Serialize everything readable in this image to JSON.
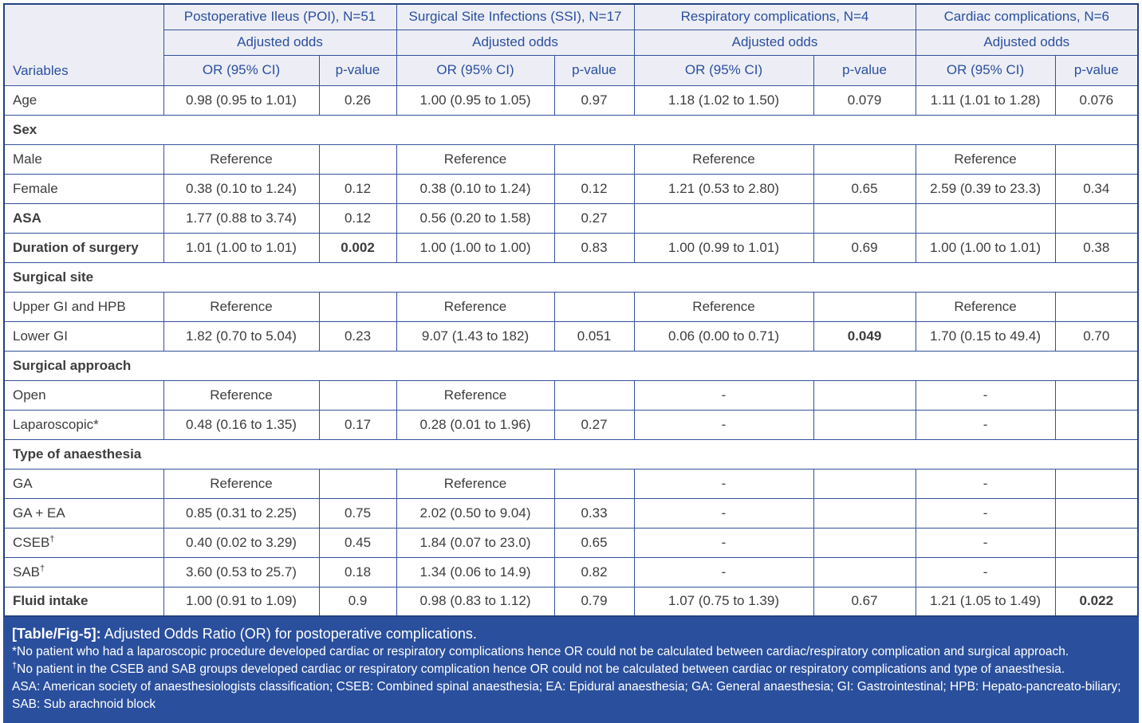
{
  "table": {
    "groups": [
      {
        "label": "Postoperative Ileus (POI), N=51",
        "subheader": "Adjusted odds"
      },
      {
        "label": "Surgical Site Infections (SSI), N=17",
        "subheader": "Adjusted odds"
      },
      {
        "label": "Respiratory complications, N=4",
        "subheader": "Adjusted odds"
      },
      {
        "label": "Cardiac complications, N=6",
        "subheader": "Adjusted odds"
      }
    ],
    "col_headers": {
      "variables": "Variables",
      "or": "OR (95% CI)",
      "p": "p-value"
    },
    "rows": [
      {
        "kind": "data",
        "label": "Age",
        "cells": [
          "0.98 (0.95 to 1.01)",
          "0.26",
          "1.00 (0.95 to 1.05)",
          "0.97",
          "1.18 (1.02 to 1.50)",
          "0.079",
          "1.11 (1.01 to 1.28)",
          "0.076"
        ]
      },
      {
        "kind": "section",
        "label": "Sex"
      },
      {
        "kind": "data",
        "label": "Male",
        "cells": [
          "Reference",
          "",
          "Reference",
          "",
          "Reference",
          "",
          "Reference",
          ""
        ]
      },
      {
        "kind": "data",
        "label": "Female",
        "cells": [
          "0.38 (0.10 to 1.24)",
          "0.12",
          "0.38 (0.10 to 1.24)",
          "0.12",
          "1.21 (0.53 to 2.80)",
          "0.65",
          "2.59 (0.39 to 23.3)",
          "0.34"
        ]
      },
      {
        "kind": "data",
        "label": "ASA",
        "labelBold": true,
        "cells": [
          "1.77 (0.88 to 3.74)",
          "0.12",
          "0.56 (0.20 to 1.58)",
          "0.27",
          "",
          "",
          "",
          ""
        ]
      },
      {
        "kind": "data",
        "label": "Duration of surgery",
        "labelBold": true,
        "boldCells": [
          1
        ],
        "cells": [
          "1.01 (1.00 to 1.01)",
          "0.002",
          "1.00 (1.00 to 1.00)",
          "0.83",
          "1.00 (0.99 to 1.01)",
          "0.69",
          "1.00 (1.00 to 1.01)",
          "0.38"
        ]
      },
      {
        "kind": "section",
        "label": "Surgical site"
      },
      {
        "kind": "data",
        "label": "Upper GI and HPB",
        "cells": [
          "Reference",
          "",
          "Reference",
          "",
          "Reference",
          "",
          "Reference",
          ""
        ]
      },
      {
        "kind": "data",
        "label": "Lower GI",
        "boldCells": [
          5
        ],
        "cells": [
          "1.82 (0.70 to 5.04)",
          "0.23",
          "9.07 (1.43 to 182)",
          "0.051",
          "0.06 (0.00 to 0.71)",
          "0.049",
          "1.70 (0.15 to 49.4)",
          "0.70"
        ]
      },
      {
        "kind": "section",
        "label": "Surgical approach"
      },
      {
        "kind": "data",
        "label": "Open",
        "cells": [
          "Reference",
          "",
          "Reference",
          "",
          "-",
          "",
          "-",
          ""
        ]
      },
      {
        "kind": "data",
        "label": "Laparoscopic*",
        "cells": [
          "0.48 (0.16 to 1.35)",
          "0.17",
          "0.28 (0.01 to 1.96)",
          "0.27",
          "-",
          "",
          "-",
          ""
        ]
      },
      {
        "kind": "section",
        "label": "Type of anaesthesia"
      },
      {
        "kind": "data",
        "label": "GA",
        "cells": [
          "Reference",
          "",
          "Reference",
          "",
          "-",
          "",
          "-",
          ""
        ]
      },
      {
        "kind": "data",
        "label": "GA + EA",
        "cells": [
          "0.85 (0.31 to 2.25)",
          "0.75",
          "2.02 (0.50 to 9.04)",
          "0.33",
          "-",
          "",
          "-",
          ""
        ]
      },
      {
        "kind": "data",
        "label": "CSEB",
        "sup": "†",
        "cells": [
          "0.40 (0.02 to 3.29)",
          "0.45",
          "1.84 (0.07 to 23.0)",
          "0.65",
          "-",
          "",
          "-",
          ""
        ]
      },
      {
        "kind": "data",
        "label": "SAB",
        "sup": "†",
        "cells": [
          "3.60 (0.53 to 25.7)",
          "0.18",
          "1.34 (0.06 to 14.9)",
          "0.82",
          "-",
          "",
          "-",
          ""
        ]
      },
      {
        "kind": "data",
        "label": "Fluid intake",
        "labelBold": true,
        "boldCells": [
          7
        ],
        "cells": [
          "1.00 (0.91 to 1.09)",
          "0.9",
          "0.98 (0.83 to 1.12)",
          "0.79",
          "1.07 (0.75 to 1.39)",
          "0.67",
          "1.21 (1.05 to 1.49)",
          "0.022"
        ]
      }
    ]
  },
  "footer": {
    "caption_tag": "[Table/Fig-5]:",
    "caption": " Adjusted Odds Ratio (OR) for postoperative complications.",
    "notes": [
      {
        "sup": "",
        "text": "*No patient who had a laparoscopic procedure developed cardiac or respiratory complications hence OR could not be calculated between cardiac/respiratory complication and surgical approach."
      },
      {
        "sup": "†",
        "text": "No patient in the CSEB and SAB groups developed cardiac or respiratory complication hence OR could not be calculated between cardiac or respiratory complications and type of anaesthesia."
      },
      {
        "sup": "",
        "text": "ASA: American society of anaesthesiologists classification; CSEB: Combined spinal anaesthesia; EA: Epidural anaesthesia; GA: General anaesthesia; GI: Gastrointestinal; HPB: Hepato-pancreato-biliary; SAB: Sub arachnoid block"
      }
    ]
  },
  "colors": {
    "header_bg": "#edeef5",
    "header_text": "#2b4fa0",
    "grid_border": "#33519b",
    "outer_border": "#24427e",
    "body_text": "#3d3d3d",
    "footer_bg": "#2a4f9d",
    "footer_text": "#ffffff"
  }
}
